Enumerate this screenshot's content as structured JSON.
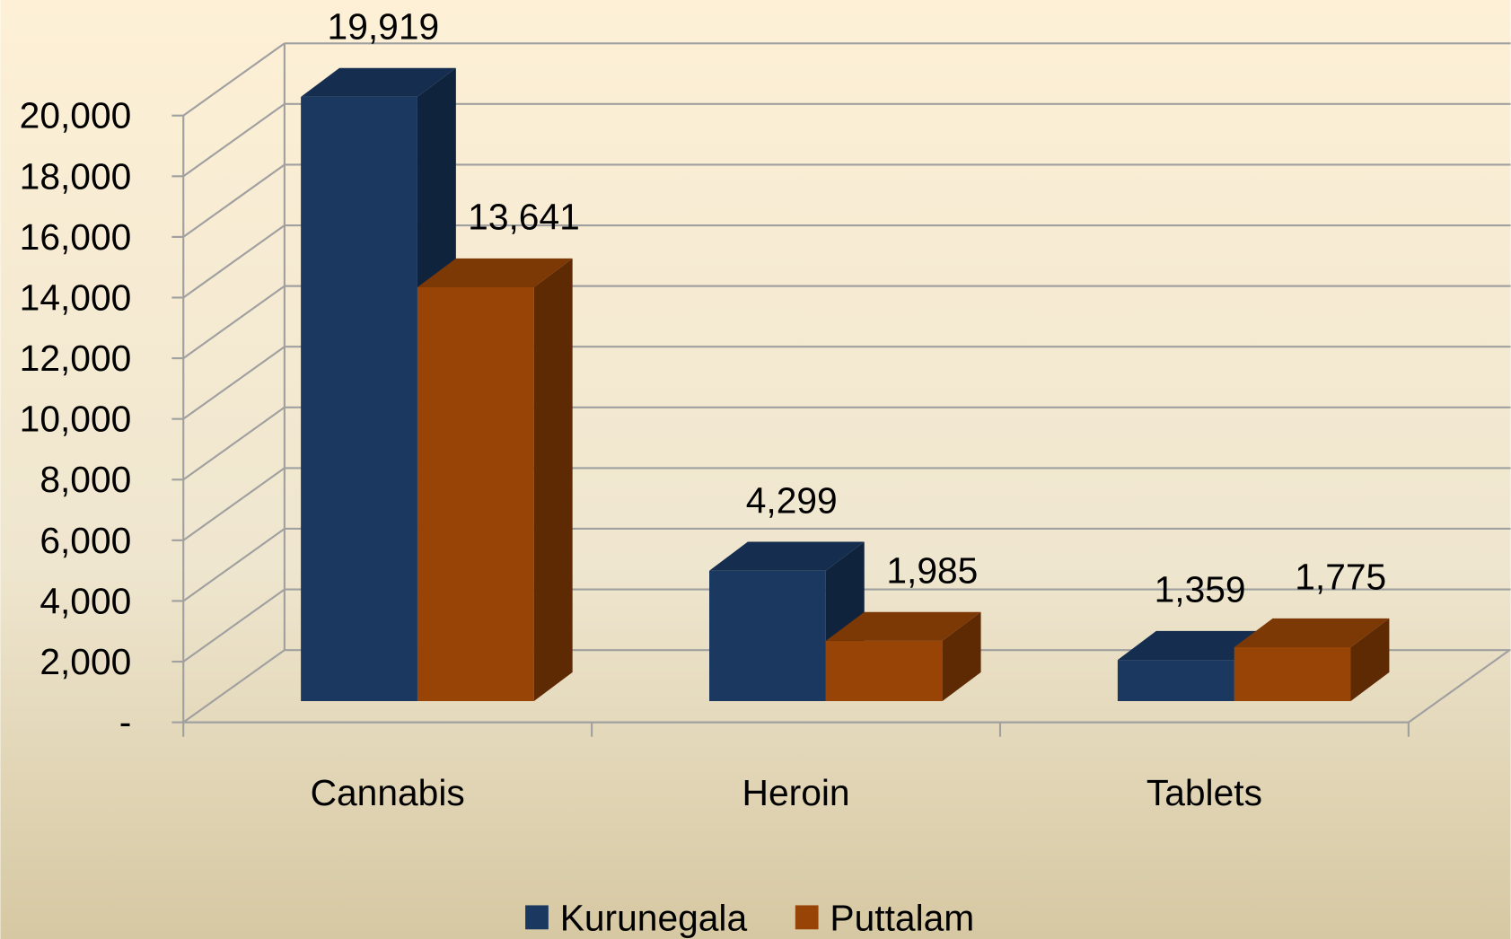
{
  "chart_data": {
    "type": "bar3d",
    "categories": [
      "Cannabis",
      "Heroin",
      "Tablets"
    ],
    "series": [
      {
        "name": "Kurunegala",
        "color": "#1a3860",
        "values": [
          19919,
          4299,
          1359
        ],
        "value_labels": [
          "19,919",
          "4,299",
          "1,359"
        ]
      },
      {
        "name": "Puttalam",
        "color": "#974406",
        "values": [
          13641,
          1985,
          1775
        ],
        "value_labels": [
          "13,641",
          "1,985",
          "1,775"
        ]
      }
    ],
    "ylim": [
      0,
      20000
    ],
    "yticks": [
      {
        "value": 0,
        "label": "-"
      },
      {
        "value": 2000,
        "label": "2,000"
      },
      {
        "value": 4000,
        "label": "4,000"
      },
      {
        "value": 6000,
        "label": "6,000"
      },
      {
        "value": 8000,
        "label": "8,000"
      },
      {
        "value": 10000,
        "label": "10,000"
      },
      {
        "value": 12000,
        "label": "12,000"
      },
      {
        "value": 14000,
        "label": "14,000"
      },
      {
        "value": 16000,
        "label": "16,000"
      },
      {
        "value": 18000,
        "label": "18,000"
      },
      {
        "value": 20000,
        "label": "20,000"
      }
    ],
    "grid": true,
    "legend": "bottom"
  }
}
